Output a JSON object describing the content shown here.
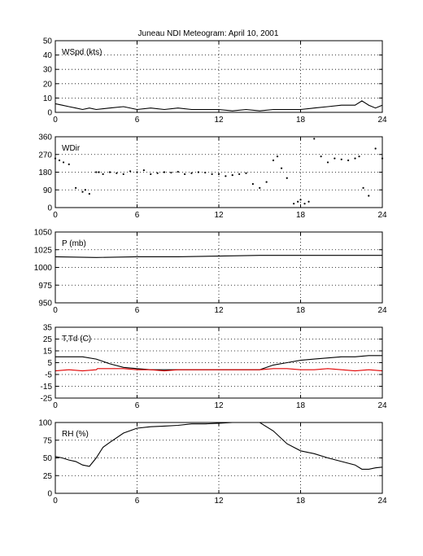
{
  "figure": {
    "title": "Juneau NDI Meteogram:      April 10, 2001"
  },
  "chart_data": [
    {
      "type": "line",
      "id": "wspd",
      "label": "WSpd (kts)",
      "xlim": [
        0,
        24
      ],
      "ylim": [
        0,
        50
      ],
      "xticks": [
        0,
        6,
        12,
        18,
        24
      ],
      "yticks": [
        0,
        10,
        20,
        30,
        40,
        50
      ],
      "grid": true,
      "series": [
        {
          "color": "#000000",
          "style": "line",
          "x": [
            0,
            0.5,
            1,
            1.5,
            2,
            2.5,
            3,
            4,
            5,
            6,
            7,
            8,
            9,
            10,
            11,
            12,
            13,
            14,
            15,
            16,
            17,
            18,
            19,
            20,
            21,
            22,
            22.5,
            23,
            23.5,
            24
          ],
          "y": [
            6,
            5,
            4,
            3,
            2,
            3,
            2,
            3,
            4,
            2,
            3,
            2,
            3,
            2,
            2,
            2,
            1,
            2,
            1,
            2,
            2,
            2,
            3,
            4,
            5,
            5,
            8,
            5,
            3,
            5
          ]
        }
      ]
    },
    {
      "type": "scatter",
      "id": "wdir",
      "label": "WDir",
      "xlim": [
        0,
        24
      ],
      "ylim": [
        0,
        360
      ],
      "xticks": [
        0,
        6,
        12,
        18,
        24
      ],
      "yticks": [
        0,
        90,
        180,
        270,
        360
      ],
      "grid": true,
      "series": [
        {
          "color": "#000000",
          "style": "dots",
          "x": [
            0,
            0.3,
            0.6,
            1,
            1.5,
            2,
            2.2,
            2.5,
            3,
            3.2,
            3.5,
            4,
            4.5,
            5,
            5.5,
            6,
            6.5,
            7,
            7.5,
            8,
            8.5,
            9,
            9.5,
            10,
            10.5,
            11,
            11.5,
            12,
            12.5,
            13,
            13.5,
            14,
            14.5,
            15,
            15.5,
            16,
            16.3,
            16.6,
            17,
            17.5,
            17.8,
            18,
            18.3,
            18.6,
            19,
            19.5,
            20,
            20.5,
            21,
            21.5,
            22,
            22.3,
            22.6,
            23,
            23.5,
            24
          ],
          "y": [
            250,
            240,
            230,
            220,
            100,
            80,
            90,
            70,
            180,
            180,
            170,
            180,
            175,
            170,
            185,
            180,
            190,
            170,
            175,
            180,
            178,
            182,
            170,
            175,
            180,
            178,
            170,
            170,
            160,
            165,
            170,
            175,
            120,
            100,
            130,
            240,
            260,
            200,
            150,
            20,
            30,
            40,
            20,
            30,
            350,
            260,
            230,
            250,
            245,
            240,
            250,
            260,
            100,
            60,
            300,
            250
          ]
        }
      ]
    },
    {
      "type": "line",
      "id": "pressure",
      "label": "P (mb)",
      "xlim": [
        0,
        24
      ],
      "ylim": [
        950,
        1050
      ],
      "xticks": [
        0,
        6,
        12,
        18,
        24
      ],
      "yticks": [
        950,
        975,
        1000,
        1025,
        1050
      ],
      "grid": true,
      "series": [
        {
          "color": "#000000",
          "style": "line",
          "x": [
            0,
            3,
            6,
            9,
            12,
            15,
            18,
            21,
            24
          ],
          "y": [
            1015,
            1014,
            1015,
            1015,
            1016,
            1017,
            1017,
            1017,
            1017
          ]
        }
      ]
    },
    {
      "type": "line",
      "id": "temp_dewpoint",
      "label": "T,Td (C)",
      "xlim": [
        0,
        24
      ],
      "ylim": [
        -25,
        35
      ],
      "xticks": [
        0,
        6,
        12,
        18,
        24
      ],
      "yticks": [
        -25,
        -15,
        -5,
        5,
        15,
        25,
        35
      ],
      "grid": true,
      "series": [
        {
          "color": "#000000",
          "style": "line",
          "x": [
            0,
            1,
            2,
            3,
            4,
            5,
            6,
            7,
            8,
            9,
            10,
            11,
            12,
            13,
            14,
            15,
            16,
            17,
            18,
            19,
            20,
            21,
            22,
            23,
            24
          ],
          "y": [
            10,
            10,
            10,
            8,
            4,
            1,
            0,
            -1,
            -1,
            -1,
            -1,
            -1,
            -1,
            -1,
            -1,
            -1,
            3,
            5,
            7,
            8,
            9,
            10,
            10,
            11,
            11
          ]
        },
        {
          "color": "#e00000",
          "style": "line",
          "x": [
            0,
            1,
            2,
            3,
            3.1,
            4,
            5,
            6,
            7,
            8,
            9,
            10,
            11,
            12,
            13,
            14,
            15,
            16,
            17,
            18,
            19,
            20,
            21,
            22,
            23,
            24
          ],
          "y": [
            -2,
            -1,
            -2,
            -1,
            0,
            0,
            0,
            -1,
            -1,
            -2,
            -1,
            -1,
            -1,
            -1,
            -1,
            -1,
            -1,
            0,
            0,
            -1,
            -1,
            0,
            -1,
            -2,
            -1,
            -2
          ]
        }
      ]
    },
    {
      "type": "line",
      "id": "rh",
      "label": "RH (%)",
      "xlim": [
        0,
        24
      ],
      "ylim": [
        0,
        100
      ],
      "xticks": [
        0,
        6,
        12,
        18,
        24
      ],
      "yticks": [
        0,
        25,
        50,
        75,
        100
      ],
      "grid": true,
      "series": [
        {
          "color": "#000000",
          "style": "line",
          "x": [
            0,
            0.5,
            1,
            1.5,
            2,
            2.5,
            3,
            3.5,
            4,
            5,
            6,
            7,
            8,
            9,
            10,
            11,
            12,
            13,
            14,
            15,
            16,
            17,
            18,
            19,
            20,
            21,
            22,
            22.5,
            23,
            23.5,
            24
          ],
          "y": [
            52,
            50,
            47,
            45,
            40,
            38,
            50,
            65,
            72,
            85,
            92,
            94,
            95,
            96,
            98,
            98,
            99,
            100,
            100,
            100,
            88,
            70,
            60,
            56,
            50,
            45,
            40,
            34,
            34,
            36,
            37
          ]
        }
      ]
    }
  ]
}
